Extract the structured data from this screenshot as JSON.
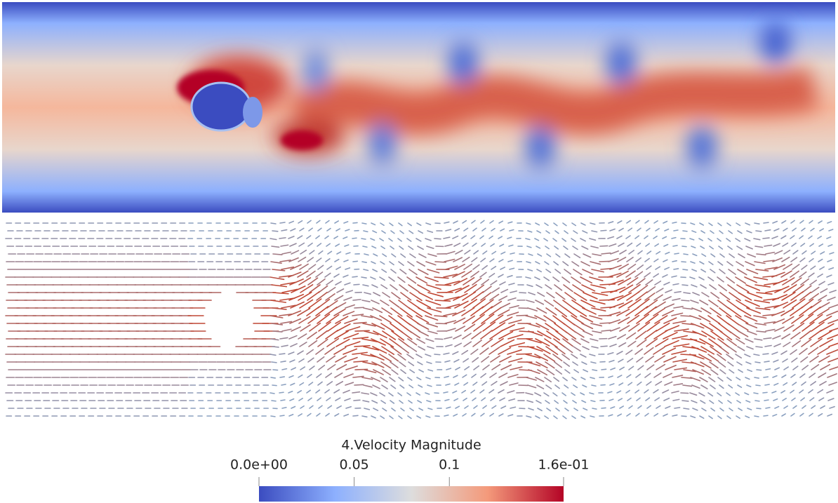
{
  "colorbar": {
    "title": "4.Velocity Magnitude",
    "range": [
      0,
      0.16
    ],
    "ticks": [
      {
        "value": 0,
        "label": "0.0e+00"
      },
      0.05,
      0.1,
      {
        "value": 0.16,
        "label": "1.6e-01"
      }
    ]
  }
}
